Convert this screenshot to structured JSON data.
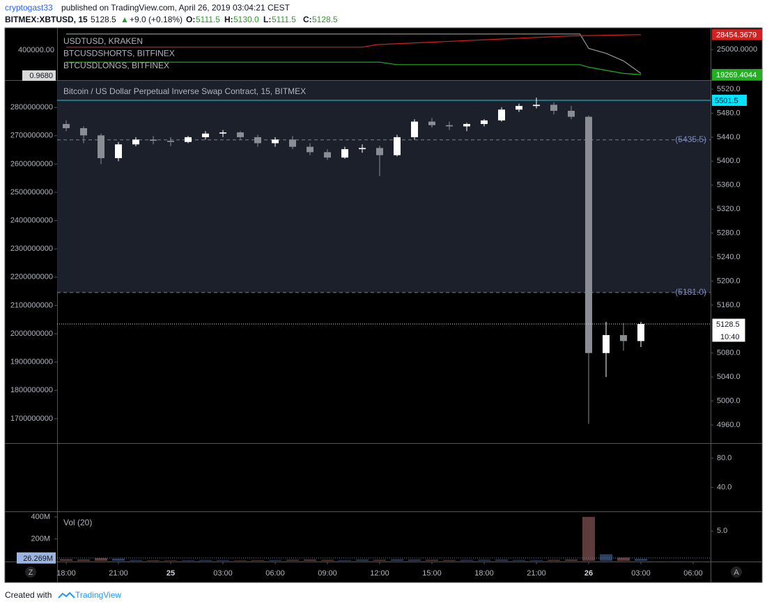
{
  "header": {
    "author": "cryptogast33",
    "published": "published on TradingView.com, April 26, 2019 03:04:21 CEST",
    "symbol": "BITMEX:XBTUSD, 15",
    "last": "5128.5",
    "arrow": "▲",
    "change": "+9.0 (+0.18%)",
    "o_label": "O:",
    "o": "5111.5",
    "h_label": "H:",
    "h": "5130.0",
    "l_label": "L:",
    "l": "5111.5",
    "c_label": "C:",
    "c": "5128.5"
  },
  "chart_data": [
    {
      "type": "line",
      "xlim": [
        -0.52,
        37
      ],
      "ylim": [
        18000,
        30000
      ],
      "yticks": [
        {
          "value": 25000,
          "label": "25000.0000"
        }
      ],
      "left_labels": [
        "400000.00",
        "0.9680"
      ],
      "series": [
        {
          "name": "USDTUSD, KRAKEN",
          "color": "#9a9a9a",
          "x": [
            0,
            29.5,
            30,
            31,
            32,
            33
          ],
          "values": [
            28598,
            28598,
            25288,
            24137,
            22410,
            19530
          ]
        },
        {
          "name": "BTCUSDSHORTS, BITFINEX",
          "color": "#d32020",
          "x": [
            0,
            17,
            17.8,
            21,
            25,
            29,
            33
          ],
          "values": [
            25576,
            25576,
            26151,
            26727,
            27446,
            28166,
            28454.3679
          ]
        },
        {
          "name": "BTCUSDLONGS, BITFINEX",
          "color": "#22b022",
          "x": [
            0,
            18,
            19,
            29.5,
            30,
            32,
            33
          ],
          "values": [
            22122,
            22122,
            21546,
            21546,
            20970,
            19530,
            19269.4044
          ]
        }
      ]
    },
    {
      "type": "candlestick",
      "title": "Bitcoin / US Dollar Perpetual Inverse Swap Contract, 15, BITMEX",
      "xlim": [
        -0.52,
        37
      ],
      "xticks": [
        {
          "value": 0,
          "label": "18:00"
        },
        {
          "value": 3,
          "label": "21:00"
        },
        {
          "value": 6,
          "label": "25"
        },
        {
          "value": 9,
          "label": "03:00"
        },
        {
          "value": 12,
          "label": "06:00"
        },
        {
          "value": 15,
          "label": "09:00"
        },
        {
          "value": 18,
          "label": "12:00"
        },
        {
          "value": 21,
          "label": "15:00"
        },
        {
          "value": 24,
          "label": "18:00"
        },
        {
          "value": 27,
          "label": "21:00"
        },
        {
          "value": 30,
          "label": "26"
        },
        {
          "value": 33,
          "label": "03:00"
        },
        {
          "value": 36,
          "label": "06:00"
        }
      ],
      "ylim": [
        4931,
        5534
      ],
      "yticks": [
        {
          "value": 5520,
          "label": "5520.0"
        },
        {
          "value": 5480,
          "label": "5480.0"
        },
        {
          "value": 5440,
          "label": "5440.0"
        },
        {
          "value": 5400,
          "label": "5400.0"
        },
        {
          "value": 5360,
          "label": "5360.0"
        },
        {
          "value": 5320,
          "label": "5320.0"
        },
        {
          "value": 5280,
          "label": "5280.0"
        },
        {
          "value": 5240,
          "label": "5240.0"
        },
        {
          "value": 5200,
          "label": "5200.0"
        },
        {
          "value": 5160,
          "label": "5160.0"
        },
        {
          "value": 5080,
          "label": "5080.0"
        },
        {
          "value": 5040,
          "label": "5040.0"
        },
        {
          "value": 5000,
          "label": "5000.0"
        },
        {
          "value": 4960,
          "label": "4960.0"
        }
      ],
      "y2lim": [
        1616000000,
        2894000000
      ],
      "y2ticks": [
        2800000000,
        2700000000,
        2600000000,
        2500000000,
        2400000000,
        2300000000,
        2200000000,
        2100000000,
        2000000000,
        1900000000,
        1800000000,
        1700000000
      ],
      "levels": [
        {
          "value": 5501.5,
          "label": "5501.5"
        },
        {
          "value": 5435.5,
          "label": "(5435.5)"
        },
        {
          "value": 5181.0,
          "label": "(5181.0)"
        }
      ],
      "last_price": {
        "value": 5128.5,
        "label": "5128.5"
      },
      "countdown": "10:40",
      "up_color": "#ffffff",
      "down_color": "#8a8d94",
      "x": [
        0,
        1,
        2,
        3,
        4,
        5,
        6,
        7,
        8,
        9,
        10,
        11,
        12,
        13,
        14,
        15,
        16,
        17,
        18,
        19,
        20,
        21,
        22,
        23,
        24,
        25,
        26,
        27,
        28,
        29,
        30,
        31,
        32,
        33
      ],
      "ohlc": [
        [
          5462,
          5468,
          5450,
          5455
        ],
        [
          5455,
          5458,
          5430,
          5443
        ],
        [
          5443,
          5446,
          5395,
          5405
        ],
        [
          5405,
          5432,
          5400,
          5428
        ],
        [
          5428,
          5440,
          5425,
          5436
        ],
        [
          5436,
          5442,
          5428,
          5434
        ],
        [
          5434,
          5440,
          5425,
          5432
        ],
        [
          5432,
          5442,
          5430,
          5440
        ],
        [
          5440,
          5450,
          5436,
          5446
        ],
        [
          5446,
          5452,
          5440,
          5448
        ],
        [
          5448,
          5450,
          5436,
          5440
        ],
        [
          5440,
          5444,
          5424,
          5430
        ],
        [
          5430,
          5440,
          5424,
          5436
        ],
        [
          5436,
          5442,
          5420,
          5424
        ],
        [
          5424,
          5430,
          5410,
          5415
        ],
        [
          5415,
          5420,
          5402,
          5406
        ],
        [
          5406,
          5424,
          5404,
          5420
        ],
        [
          5420,
          5428,
          5414,
          5422
        ],
        [
          5422,
          5426,
          5375,
          5410
        ],
        [
          5410,
          5444,
          5408,
          5440
        ],
        [
          5440,
          5470,
          5436,
          5466
        ],
        [
          5466,
          5472,
          5456,
          5460
        ],
        [
          5460,
          5466,
          5452,
          5458
        ],
        [
          5458,
          5464,
          5450,
          5462
        ],
        [
          5462,
          5470,
          5458,
          5468
        ],
        [
          5468,
          5490,
          5466,
          5486
        ],
        [
          5486,
          5496,
          5482,
          5492
        ],
        [
          5492,
          5506,
          5488,
          5494
        ],
        [
          5494,
          5498,
          5478,
          5484
        ],
        [
          5484,
          5492,
          5470,
          5474
        ],
        [
          5474,
          5476,
          4962,
          5080
        ],
        [
          5080,
          5132,
          5040,
          5110
        ],
        [
          5110,
          5130,
          5084,
          5100
        ],
        [
          5100,
          5132,
          5090,
          5128.5
        ]
      ]
    },
    {
      "type": "line",
      "ylim": [
        8.4,
        99.5
      ],
      "yticks": [
        {
          "value": 80,
          "label": "80.0"
        },
        {
          "value": 40,
          "label": "40.0"
        }
      ],
      "series": []
    },
    {
      "type": "bar",
      "title": "Vol (20)",
      "ylim": [
        0,
        444
      ],
      "yticks": [
        {
          "value": 400,
          "label": "400M"
        },
        {
          "value": 200,
          "label": "200M"
        }
      ],
      "y2lim": [
        0,
        8.2
      ],
      "y2ticks": [
        {
          "value": 5,
          "label": "5.0"
        }
      ],
      "current": {
        "value": 26.269,
        "label": "26.269M"
      },
      "up_color": "#2c3f5e",
      "down_color": "#5e3c3c",
      "x": [
        0,
        1,
        2,
        3,
        4,
        5,
        6,
        7,
        8,
        9,
        10,
        11,
        12,
        13,
        14,
        15,
        16,
        17,
        18,
        19,
        20,
        21,
        22,
        23,
        24,
        25,
        26,
        27,
        28,
        29,
        30,
        31,
        32,
        33
      ],
      "values": [
        15,
        12,
        25,
        20,
        8,
        6,
        5,
        6,
        8,
        7,
        5,
        6,
        8,
        10,
        12,
        9,
        7,
        12,
        10,
        14,
        12,
        10,
        8,
        9,
        10,
        12,
        8,
        7,
        9,
        12,
        400,
        60,
        30,
        18
      ]
    }
  ],
  "ui": {
    "z": "Z",
    "a": "A"
  },
  "footer": {
    "created": "Created with",
    "brand": "TradingView"
  }
}
